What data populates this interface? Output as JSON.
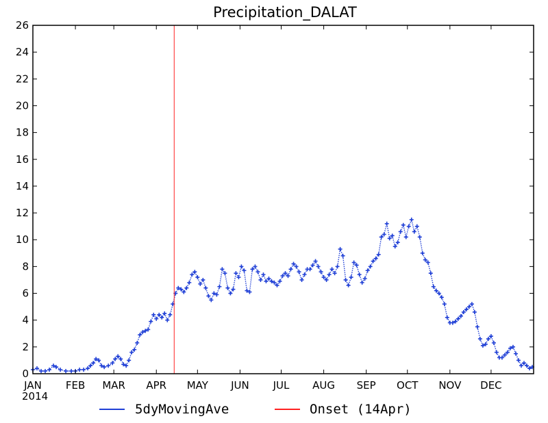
{
  "chart_data": {
    "type": "line",
    "title": "Precipitation_DALAT",
    "xlabel": "",
    "ylabel": "",
    "year_label": "2014",
    "xlim": [
      0,
      365
    ],
    "ylim": [
      0,
      26
    ],
    "y_ticks": [
      "0",
      "2",
      "4",
      "6",
      "8",
      "10",
      "12",
      "14",
      "16",
      "18",
      "20",
      "22",
      "24",
      "26"
    ],
    "x_ticks": [
      {
        "label": "JAN",
        "day": 0
      },
      {
        "label": "FEB",
        "day": 31
      },
      {
        "label": "MAR",
        "day": 59
      },
      {
        "label": "APR",
        "day": 90
      },
      {
        "label": "MAY",
        "day": 120
      },
      {
        "label": "JUN",
        "day": 151
      },
      {
        "label": "JUL",
        "day": 181
      },
      {
        "label": "AUG",
        "day": 212
      },
      {
        "label": "SEP",
        "day": 243
      },
      {
        "label": "OCT",
        "day": 273
      },
      {
        "label": "NOV",
        "day": 304
      },
      {
        "label": "DEC",
        "day": 334
      }
    ],
    "grid": false,
    "legend_position": "bottom",
    "series": [
      {
        "name": "5dyMovingAve",
        "color": "#1f3fd6",
        "marker": "plus",
        "points": [
          [
            0,
            0.3
          ],
          [
            3,
            0.4
          ],
          [
            6,
            0.2
          ],
          [
            9,
            0.2
          ],
          [
            12,
            0.3
          ],
          [
            15,
            0.6
          ],
          [
            17,
            0.5
          ],
          [
            20,
            0.3
          ],
          [
            24,
            0.2
          ],
          [
            28,
            0.2
          ],
          [
            31,
            0.2
          ],
          [
            34,
            0.3
          ],
          [
            37,
            0.3
          ],
          [
            40,
            0.4
          ],
          [
            42,
            0.6
          ],
          [
            44,
            0.8
          ],
          [
            46,
            1.1
          ],
          [
            48,
            1.0
          ],
          [
            50,
            0.6
          ],
          [
            52,
            0.5
          ],
          [
            55,
            0.6
          ],
          [
            58,
            0.8
          ],
          [
            60,
            1.1
          ],
          [
            62,
            1.3
          ],
          [
            64,
            1.1
          ],
          [
            66,
            0.7
          ],
          [
            68,
            0.6
          ],
          [
            70,
            1.0
          ],
          [
            72,
            1.6
          ],
          [
            74,
            1.8
          ],
          [
            76,
            2.3
          ],
          [
            78,
            2.9
          ],
          [
            80,
            3.1
          ],
          [
            82,
            3.2
          ],
          [
            84,
            3.3
          ],
          [
            86,
            3.9
          ],
          [
            88,
            4.4
          ],
          [
            90,
            4.1
          ],
          [
            92,
            4.4
          ],
          [
            94,
            4.2
          ],
          [
            96,
            4.5
          ],
          [
            98,
            4.0
          ],
          [
            100,
            4.4
          ],
          [
            102,
            5.2
          ],
          [
            104,
            6.0
          ],
          [
            106,
            6.4
          ],
          [
            108,
            6.3
          ],
          [
            110,
            6.1
          ],
          [
            112,
            6.4
          ],
          [
            114,
            6.8
          ],
          [
            116,
            7.4
          ],
          [
            118,
            7.6
          ],
          [
            120,
            7.2
          ],
          [
            122,
            6.7
          ],
          [
            124,
            7.0
          ],
          [
            126,
            6.4
          ],
          [
            128,
            5.8
          ],
          [
            130,
            5.5
          ],
          [
            132,
            6.0
          ],
          [
            134,
            5.9
          ],
          [
            136,
            6.5
          ],
          [
            138,
            7.8
          ],
          [
            140,
            7.5
          ],
          [
            142,
            6.4
          ],
          [
            144,
            6.0
          ],
          [
            146,
            6.3
          ],
          [
            148,
            7.5
          ],
          [
            150,
            7.2
          ],
          [
            152,
            8.0
          ],
          [
            154,
            7.7
          ],
          [
            156,
            6.2
          ],
          [
            158,
            6.1
          ],
          [
            160,
            7.8
          ],
          [
            162,
            8.0
          ],
          [
            164,
            7.6
          ],
          [
            166,
            7.0
          ],
          [
            168,
            7.4
          ],
          [
            170,
            6.9
          ],
          [
            172,
            7.1
          ],
          [
            174,
            6.9
          ],
          [
            176,
            6.8
          ],
          [
            178,
            6.6
          ],
          [
            180,
            6.9
          ],
          [
            182,
            7.3
          ],
          [
            184,
            7.5
          ],
          [
            186,
            7.3
          ],
          [
            188,
            7.8
          ],
          [
            190,
            8.2
          ],
          [
            192,
            8.0
          ],
          [
            194,
            7.6
          ],
          [
            196,
            7.0
          ],
          [
            198,
            7.4
          ],
          [
            200,
            7.8
          ],
          [
            202,
            7.8
          ],
          [
            204,
            8.1
          ],
          [
            206,
            8.4
          ],
          [
            208,
            8.0
          ],
          [
            210,
            7.6
          ],
          [
            212,
            7.2
          ],
          [
            214,
            7.0
          ],
          [
            216,
            7.4
          ],
          [
            218,
            7.8
          ],
          [
            220,
            7.5
          ],
          [
            222,
            8.0
          ],
          [
            224,
            9.3
          ],
          [
            226,
            8.8
          ],
          [
            228,
            7.0
          ],
          [
            230,
            6.6
          ],
          [
            232,
            7.2
          ],
          [
            234,
            8.3
          ],
          [
            236,
            8.1
          ],
          [
            238,
            7.4
          ],
          [
            240,
            6.8
          ],
          [
            242,
            7.1
          ],
          [
            244,
            7.7
          ],
          [
            246,
            8.0
          ],
          [
            248,
            8.4
          ],
          [
            250,
            8.6
          ],
          [
            252,
            8.9
          ],
          [
            254,
            10.2
          ],
          [
            256,
            10.4
          ],
          [
            258,
            11.2
          ],
          [
            260,
            10.1
          ],
          [
            262,
            10.3
          ],
          [
            264,
            9.5
          ],
          [
            266,
            9.8
          ],
          [
            268,
            10.6
          ],
          [
            270,
            11.1
          ],
          [
            272,
            10.2
          ],
          [
            274,
            11.0
          ],
          [
            276,
            11.5
          ],
          [
            278,
            10.6
          ],
          [
            280,
            11.0
          ],
          [
            282,
            10.2
          ],
          [
            284,
            9.0
          ],
          [
            286,
            8.5
          ],
          [
            288,
            8.3
          ],
          [
            290,
            7.5
          ],
          [
            292,
            6.5
          ],
          [
            294,
            6.2
          ],
          [
            296,
            6.0
          ],
          [
            298,
            5.7
          ],
          [
            300,
            5.2
          ],
          [
            302,
            4.2
          ],
          [
            304,
            3.8
          ],
          [
            306,
            3.8
          ],
          [
            308,
            3.9
          ],
          [
            310,
            4.1
          ],
          [
            312,
            4.3
          ],
          [
            314,
            4.6
          ],
          [
            316,
            4.8
          ],
          [
            318,
            5.0
          ],
          [
            320,
            5.2
          ],
          [
            322,
            4.6
          ],
          [
            324,
            3.5
          ],
          [
            326,
            2.6
          ],
          [
            328,
            2.1
          ],
          [
            330,
            2.2
          ],
          [
            332,
            2.6
          ],
          [
            334,
            2.8
          ],
          [
            336,
            2.3
          ],
          [
            338,
            1.6
          ],
          [
            340,
            1.2
          ],
          [
            342,
            1.2
          ],
          [
            344,
            1.4
          ],
          [
            346,
            1.6
          ],
          [
            348,
            1.9
          ],
          [
            350,
            2.0
          ],
          [
            352,
            1.5
          ],
          [
            354,
            1.0
          ],
          [
            356,
            0.6
          ],
          [
            358,
            0.8
          ],
          [
            360,
            0.6
          ],
          [
            362,
            0.4
          ],
          [
            364,
            0.5
          ]
        ]
      },
      {
        "name": "Onset (14Apr)",
        "color": "#ff2020",
        "onset_day": 103
      }
    ]
  }
}
